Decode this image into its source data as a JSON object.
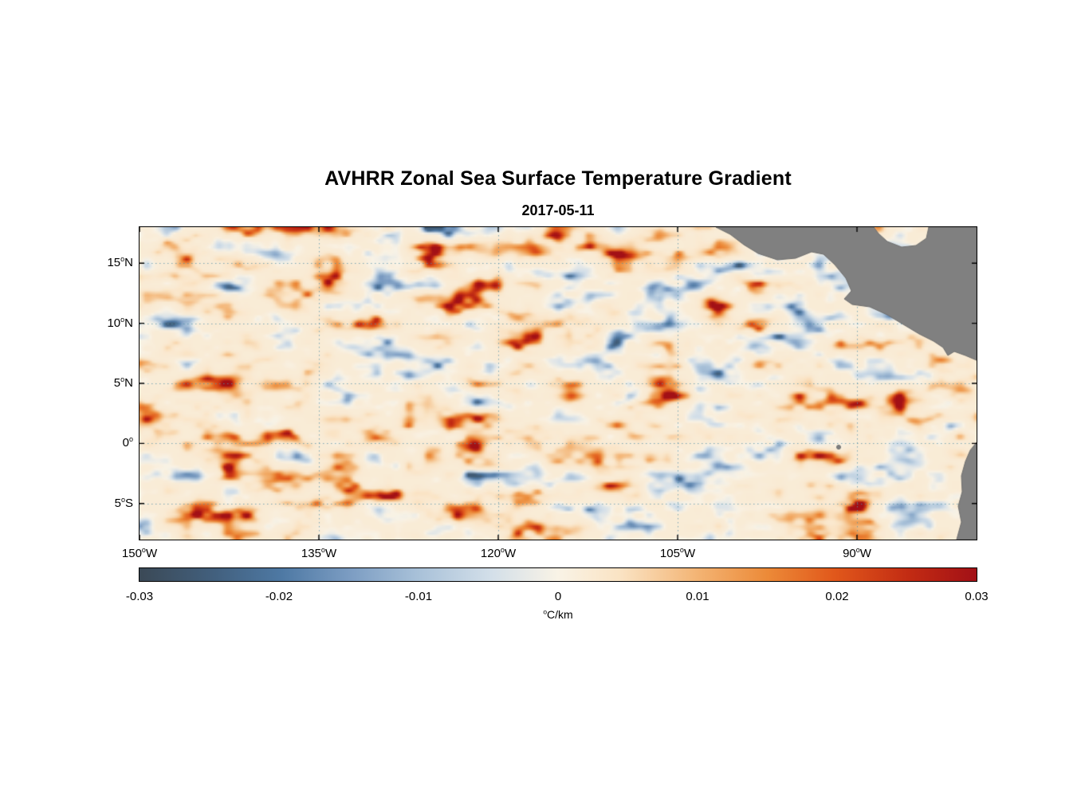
{
  "chart_data": {
    "type": "heatmap",
    "title": "AVHRR Zonal Sea Surface Temperature Gradient",
    "subtitle": "2017-05-11",
    "x_axis": {
      "range_lon_west": [
        150,
        80
      ],
      "ticks": [
        {
          "deg": "150",
          "sup": "o",
          "hem": "W",
          "lon": 150
        },
        {
          "deg": "135",
          "sup": "o",
          "hem": "W",
          "lon": 135
        },
        {
          "deg": "120",
          "sup": "o",
          "hem": "W",
          "lon": 120
        },
        {
          "deg": "105",
          "sup": "o",
          "hem": "W",
          "lon": 105
        },
        {
          "deg": "90",
          "sup": "o",
          "hem": "W",
          "lon": 90
        }
      ]
    },
    "y_axis": {
      "range_lat": [
        18,
        -8
      ],
      "ticks": [
        {
          "deg": "15",
          "sup": "o",
          "hem": "N",
          "lat": 15
        },
        {
          "deg": "10",
          "sup": "o",
          "hem": "N",
          "lat": 10
        },
        {
          "deg": "5",
          "sup": "o",
          "hem": "N",
          "lat": 5
        },
        {
          "deg": "0",
          "sup": "o",
          "hem": "",
          "lat": 0
        },
        {
          "deg": "5",
          "sup": "o",
          "hem": "S",
          "lat": -5
        }
      ]
    },
    "grid": {
      "on": true,
      "style": "dotted",
      "color": "#4f8fa8"
    },
    "colorbar": {
      "min": -0.03,
      "max": 0.03,
      "tick_labels": [
        "-0.03",
        "-0.02",
        "-0.01",
        "0",
        "0.01",
        "0.02",
        "0.03"
      ],
      "unit": {
        "sup": "o",
        "text": "C/km"
      },
      "colormap": [
        {
          "t": 0.0,
          "color": "#3b4956"
        },
        {
          "t": 0.09,
          "color": "#42607e"
        },
        {
          "t": 0.17,
          "color": "#4e79a4"
        },
        {
          "t": 0.25,
          "color": "#7b9cc2"
        },
        {
          "t": 0.33,
          "color": "#a7c0d8"
        },
        {
          "t": 0.42,
          "color": "#d3dfe9"
        },
        {
          "t": 0.5,
          "color": "#f9f3e6"
        },
        {
          "t": 0.575,
          "color": "#fae3c3"
        },
        {
          "t": 0.67,
          "color": "#f3b271"
        },
        {
          "t": 0.75,
          "color": "#ec8a38"
        },
        {
          "t": 0.83,
          "color": "#e1581b"
        },
        {
          "t": 0.92,
          "color": "#c22b13"
        },
        {
          "t": 1.0,
          "color": "#a21016"
        }
      ]
    },
    "land": {
      "color": "#808080",
      "edge": "#6e6e6e",
      "polygons": [
        [
          [
            723,
            0
          ],
          [
            741,
            9
          ],
          [
            758,
            22
          ],
          [
            776,
            33
          ],
          [
            800,
            41
          ],
          [
            823,
            39
          ],
          [
            843,
            31
          ],
          [
            858,
            34
          ],
          [
            872,
            47
          ],
          [
            886,
            64
          ],
          [
            893,
            80
          ],
          [
            884,
            90
          ],
          [
            894,
            97
          ],
          [
            916,
            100
          ],
          [
            938,
            110
          ],
          [
            958,
            122
          ],
          [
            978,
            134
          ],
          [
            996,
            143
          ],
          [
            1008,
            151
          ],
          [
            1014,
            161
          ],
          [
            1022,
            156
          ],
          [
            1036,
            161
          ],
          [
            1050,
            167
          ],
          [
            1050,
            0
          ],
          [
            990,
            0
          ],
          [
            987,
            14
          ],
          [
            974,
            23
          ],
          [
            956,
            25
          ],
          [
            938,
            18
          ],
          [
            927,
            8
          ],
          [
            921,
            0
          ]
        ],
        [
          [
            1050,
            270
          ],
          [
            1042,
            280
          ],
          [
            1036,
            294
          ],
          [
            1031,
            312
          ],
          [
            1032,
            332
          ],
          [
            1027,
            350
          ],
          [
            1031,
            370
          ],
          [
            1025,
            392
          ],
          [
            1050,
            392
          ]
        ]
      ],
      "island_marker": [
        877,
        276
      ]
    }
  }
}
